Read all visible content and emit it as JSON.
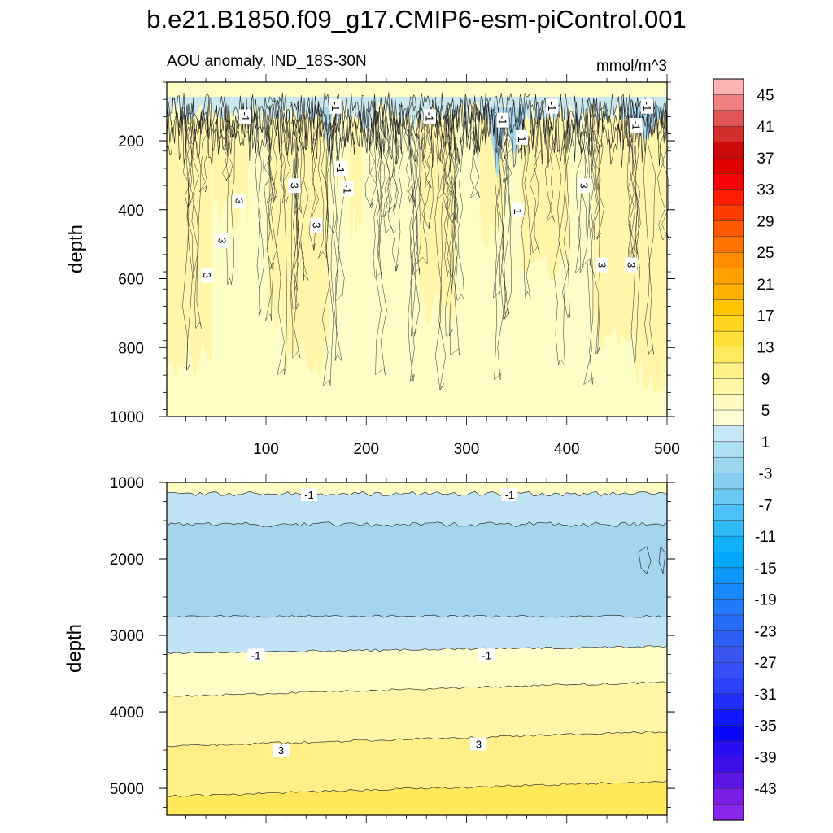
{
  "chart_data": {
    "type": "heatmap",
    "title": "b.e21.B1850.f09_g17.CMIP6-esm-piControl.001",
    "variable_label": "AOU anomaly, IND_18S-30N",
    "units": "mmol/m^3",
    "panels": [
      {
        "name": "upper",
        "ylabel": "depth",
        "xlim": [
          1,
          500
        ],
        "ylim": [
          1000,
          30
        ],
        "x_ticks": [
          "100",
          "200",
          "300",
          "400",
          "500"
        ],
        "y_ticks": [
          "200",
          "400",
          "600",
          "800",
          "1000"
        ],
        "y_tick_values": [
          200,
          400,
          600,
          800,
          1000
        ],
        "contour_labels": [
          {
            "text": "-1",
            "x": 78,
            "depth": 130
          },
          {
            "text": "-1",
            "x": 168,
            "depth": 100
          },
          {
            "text": "-1",
            "x": 262,
            "depth": 130
          },
          {
            "text": "-1",
            "x": 335,
            "depth": 140
          },
          {
            "text": "-1",
            "x": 384,
            "depth": 100
          },
          {
            "text": "-1",
            "x": 354,
            "depth": 190
          },
          {
            "text": "-1",
            "x": 173,
            "depth": 280
          },
          {
            "text": "-1",
            "x": 180,
            "depth": 340
          },
          {
            "text": "-1",
            "x": 350,
            "depth": 400
          },
          {
            "text": "-1",
            "x": 479,
            "depth": 100
          },
          {
            "text": "-1",
            "x": 468,
            "depth": 155
          },
          {
            "text": "3",
            "x": 127,
            "depth": 330
          },
          {
            "text": "3",
            "x": 72,
            "depth": 375
          },
          {
            "text": "3",
            "x": 149,
            "depth": 445
          },
          {
            "text": "3",
            "x": 55,
            "depth": 490
          },
          {
            "text": "3",
            "x": 40,
            "depth": 590
          },
          {
            "text": "3",
            "x": 416,
            "depth": 330
          },
          {
            "text": "3",
            "x": 434,
            "depth": 560
          },
          {
            "text": "3",
            "x": 463,
            "depth": 560
          }
        ]
      },
      {
        "name": "lower",
        "ylabel": "depth",
        "xlim": [
          1,
          500
        ],
        "ylim": [
          5350,
          1000
        ],
        "y_ticks": [
          "1000",
          "2000",
          "3000",
          "4000",
          "5000"
        ],
        "y_tick_values": [
          1000,
          2000,
          3000,
          4000,
          5000
        ],
        "bands": [
          {
            "name": "near-zero",
            "from_depth": 1000,
            "to_depth": 1150,
            "level": 1
          },
          {
            "name": "negative",
            "from_depth": 1150,
            "to_depth": 1550,
            "level": -1
          },
          {
            "name": "negative-strong",
            "from_depth": 1550,
            "to_depth": 2750,
            "level": -3
          },
          {
            "name": "negative",
            "from_depth": 2750,
            "to_depth": 3230,
            "level": -1
          },
          {
            "name": "near-zero",
            "from_depth": 3230,
            "to_depth": 3800,
            "level": 1
          },
          {
            "name": "positive",
            "from_depth": 3800,
            "to_depth": 4450,
            "level": 3
          },
          {
            "name": "positive",
            "from_depth": 4450,
            "to_depth": 5100,
            "level": 5
          },
          {
            "name": "positive-strong",
            "from_depth": 5100,
            "to_depth": 5350,
            "level": 7
          }
        ],
        "contour_labels": [
          {
            "text": "-1",
            "x": 143,
            "depth": 1170
          },
          {
            "text": "-1",
            "x": 343,
            "depth": 1170
          },
          {
            "text": "-1",
            "x": 90,
            "depth": 3270
          },
          {
            "text": "-1",
            "x": 320,
            "depth": 3270
          },
          {
            "text": "3",
            "x": 115,
            "depth": 4510
          },
          {
            "text": "3",
            "x": 312,
            "depth": 4430
          }
        ]
      }
    ],
    "colorbar": {
      "labels": [
        "45",
        "41",
        "37",
        "33",
        "29",
        "25",
        "21",
        "17",
        "13",
        "9",
        "5",
        "1",
        "-3",
        "-7",
        "-11",
        "-15",
        "-19",
        "-23",
        "-27",
        "-31",
        "-35",
        "-39",
        "-43"
      ],
      "label_values": [
        45,
        41,
        37,
        33,
        29,
        25,
        21,
        17,
        13,
        9,
        5,
        1,
        -3,
        -7,
        -11,
        -15,
        -19,
        -23,
        -27,
        -31,
        -35,
        -39,
        -43
      ],
      "colors": [
        "#fdb3b3",
        "#f07f7f",
        "#e25555",
        "#d42f2f",
        "#cc0a0a",
        "#e00000",
        "#f50505",
        "#ff1e00",
        "#ff3c00",
        "#ff5a00",
        "#ff7300",
        "#ff8c00",
        "#ffa000",
        "#ffb100",
        "#ffc400",
        "#ffd41f",
        "#ffe03a",
        "#ffe95c",
        "#fff186",
        "#fff6a6",
        "#fffac4",
        "#fffdd6",
        "#c6e8f6",
        "#ade0f2",
        "#9bd5ee",
        "#85cdee",
        "#6ac8f5",
        "#4dc2f8",
        "#2fbaf8",
        "#11b1fa",
        "#02a6fa",
        "#0d97fb",
        "#1788fb",
        "#207afb",
        "#266cf8",
        "#2b5ff5",
        "#3a56f0",
        "#344ff5",
        "#2b42f8",
        "#1f2efb",
        "#1018fb",
        "#0a08f8",
        "#2a0df0",
        "#3e0fe8",
        "#5c16e6",
        "#7a1ee6",
        "#8a25ea"
      ]
    },
    "level_colors": {
      "-3": "#a3d6ee",
      "-1": "#bfe3f4",
      "1": "#fffdc6",
      "3": "#fff6a8",
      "5": "#ffef86",
      "7": "#ffe85a"
    }
  }
}
